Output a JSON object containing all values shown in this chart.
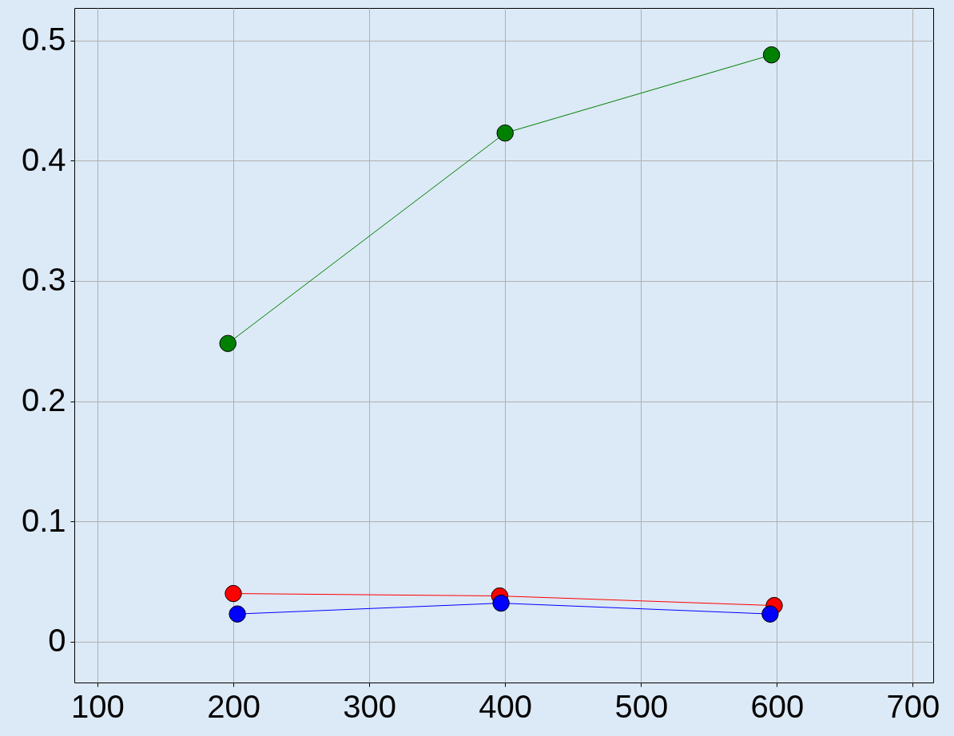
{
  "chart_data": {
    "type": "line",
    "marker": "circle",
    "grid": true,
    "xlim": [
      83,
      715
    ],
    "xticks": [
      100,
      200,
      300,
      400,
      500,
      600,
      700
    ],
    "ylim": [
      -0.034,
      0.527
    ],
    "yticks": [
      0,
      0.1,
      0.2,
      0.3,
      0.4,
      0.5
    ],
    "series": [
      {
        "color": "#008000",
        "x": [
          196,
          400,
          596
        ],
        "values": [
          0.248,
          0.423,
          0.488
        ]
      },
      {
        "color": "#ff0000",
        "x": [
          200,
          396,
          598
        ],
        "values": [
          0.04,
          0.038,
          0.03
        ]
      },
      {
        "color": "#0000ff",
        "x": [
          203,
          397,
          595
        ],
        "values": [
          0.023,
          0.032,
          0.023
        ]
      }
    ]
  }
}
